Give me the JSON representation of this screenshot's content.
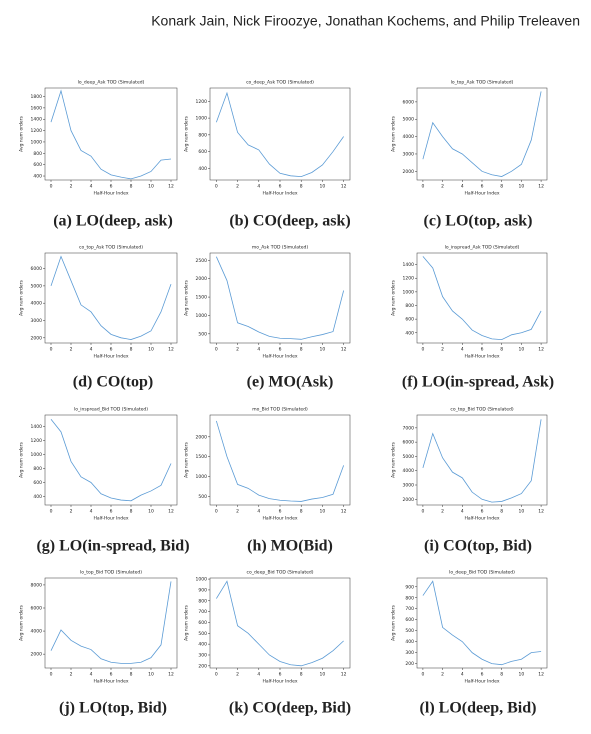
{
  "header": {
    "authors": "Konark Jain, Nick Firoozye, Jonathan Kochems, and Philip Treleaven"
  },
  "chart_data": [
    {
      "type": "line",
      "title": "lo_deep_Ask TOD (Simulated)",
      "caption": "(a) LO(deep, ask)",
      "xlabel": "Half-Hour Index",
      "ylabel": "Avg num orders",
      "x": [
        0,
        1,
        2,
        3,
        4,
        5,
        6,
        7,
        8,
        9,
        10,
        11,
        12
      ],
      "values": [
        1350,
        1900,
        1200,
        850,
        750,
        520,
        420,
        380,
        350,
        400,
        480,
        680,
        700
      ],
      "color": "#5b9bd5",
      "xlim": [
        -0.6,
        12.6
      ],
      "xticks": [
        0,
        2,
        4,
        6,
        8,
        10,
        12
      ],
      "ylim": [
        330,
        1950
      ],
      "yticks": [
        400,
        600,
        800,
        1000,
        1200,
        1400,
        1600,
        1800
      ]
    },
    {
      "type": "line",
      "title": "co_deep_Ask TOD (Simulated)",
      "caption": "(b) CO(deep, ask)",
      "xlabel": "Half-Hour Index",
      "ylabel": "Avg num orders",
      "x": [
        0,
        1,
        2,
        3,
        4,
        5,
        6,
        7,
        8,
        9,
        10,
        11,
        12
      ],
      "values": [
        950,
        1300,
        830,
        680,
        620,
        450,
        340,
        310,
        300,
        350,
        440,
        600,
        780
      ],
      "color": "#5b9bd5",
      "xlim": [
        -0.6,
        12.6
      ],
      "xticks": [
        0,
        2,
        4,
        6,
        8,
        10,
        12
      ],
      "ylim": [
        260,
        1360
      ],
      "yticks": [
        400,
        600,
        800,
        1000,
        1200
      ]
    },
    {
      "type": "line",
      "title": "lo_top_Ask TOD (Simulated)",
      "caption": "(c) LO(top, ask)",
      "xlabel": "Half-Hour Index",
      "ylabel": "Avg num orders",
      "x": [
        0,
        1,
        2,
        3,
        4,
        5,
        6,
        7,
        8,
        9,
        10,
        11,
        12
      ],
      "values": [
        2700,
        4800,
        4000,
        3300,
        3000,
        2500,
        2000,
        1800,
        1700,
        2000,
        2400,
        3800,
        6600
      ],
      "color": "#5b9bd5",
      "xlim": [
        -0.6,
        12.6
      ],
      "xticks": [
        0,
        2,
        4,
        6,
        8,
        10,
        12
      ],
      "ylim": [
        1500,
        6800
      ],
      "yticks": [
        2000,
        3000,
        4000,
        5000,
        6000
      ]
    },
    {
      "type": "line",
      "title": "co_top_Ask TOD (Simulated)",
      "caption": "(d) CO(top)",
      "xlabel": "Half-Hour Index",
      "ylabel": "Avg num orders",
      "x": [
        0,
        1,
        2,
        3,
        4,
        5,
        6,
        7,
        8,
        9,
        10,
        11,
        12
      ],
      "values": [
        5000,
        6700,
        5300,
        3900,
        3500,
        2700,
        2200,
        2000,
        1900,
        2100,
        2400,
        3500,
        5100
      ],
      "color": "#5b9bd5",
      "xlim": [
        -0.6,
        12.6
      ],
      "xticks": [
        0,
        2,
        4,
        6,
        8,
        10,
        12
      ],
      "ylim": [
        1700,
        6900
      ],
      "yticks": [
        2000,
        3000,
        4000,
        5000,
        6000
      ]
    },
    {
      "type": "line",
      "title": "mo_Ask TOD (Simulated)",
      "caption": "(e) MO(Ask)",
      "xlabel": "Half-Hour Index",
      "ylabel": "Avg num orders",
      "x": [
        0,
        1,
        2,
        3,
        4,
        5,
        6,
        7,
        8,
        9,
        10,
        11,
        12
      ],
      "values": [
        2600,
        1950,
        800,
        700,
        550,
        430,
        380,
        370,
        350,
        420,
        480,
        560,
        1680
      ],
      "color": "#5b9bd5",
      "xlim": [
        -0.6,
        12.6
      ],
      "xticks": [
        0,
        2,
        4,
        6,
        8,
        10,
        12
      ],
      "ylim": [
        250,
        2700
      ],
      "yticks": [
        500,
        1000,
        1500,
        2000,
        2500
      ]
    },
    {
      "type": "line",
      "title": "lo_inspread_Ask TOD (Simulated)",
      "caption": "(f) LO(in-spread, Ask)",
      "xlabel": "Half-Hour Index",
      "ylabel": "Avg num orders",
      "x": [
        0,
        1,
        2,
        3,
        4,
        5,
        6,
        7,
        8,
        9,
        10,
        11,
        12
      ],
      "values": [
        1520,
        1350,
        930,
        720,
        600,
        440,
        360,
        310,
        300,
        370,
        400,
        450,
        720
      ],
      "color": "#5b9bd5",
      "xlim": [
        -0.6,
        12.6
      ],
      "xticks": [
        0,
        2,
        4,
        6,
        8,
        10,
        12
      ],
      "ylim": [
        250,
        1570
      ],
      "yticks": [
        400,
        600,
        800,
        1000,
        1200,
        1400
      ]
    },
    {
      "type": "line",
      "title": "lo_inspread_Bid TOD (Simulated)",
      "caption": "(g) LO(in-spread, Bid)",
      "xlabel": "Half-Hour Index",
      "ylabel": "Avg num orders",
      "x": [
        0,
        1,
        2,
        3,
        4,
        5,
        6,
        7,
        8,
        9,
        10,
        11,
        12
      ],
      "values": [
        1500,
        1320,
        900,
        680,
        600,
        440,
        380,
        350,
        340,
        420,
        480,
        560,
        870
      ],
      "color": "#5b9bd5",
      "xlim": [
        -0.6,
        12.6
      ],
      "xticks": [
        0,
        2,
        4,
        6,
        8,
        10,
        12
      ],
      "ylim": [
        280,
        1560
      ],
      "yticks": [
        400,
        600,
        800,
        1000,
        1200,
        1400
      ]
    },
    {
      "type": "line",
      "title": "mo_Bid TOD (Simulated)",
      "caption": "(h) MO(Bid)",
      "xlabel": "Half-Hour Index",
      "ylabel": "Avg num orders",
      "x": [
        0,
        1,
        2,
        3,
        4,
        5,
        6,
        7,
        8,
        9,
        10,
        11,
        12
      ],
      "values": [
        2400,
        1500,
        800,
        700,
        530,
        440,
        400,
        380,
        370,
        430,
        470,
        550,
        1280
      ],
      "color": "#5b9bd5",
      "xlim": [
        -0.6,
        12.6
      ],
      "xticks": [
        0,
        2,
        4,
        6,
        8,
        10,
        12
      ],
      "ylim": [
        280,
        2550
      ],
      "yticks": [
        500,
        1000,
        1500,
        2000
      ]
    },
    {
      "type": "line",
      "title": "co_top_Bid TOD (Simulated)",
      "caption": "(i) CO(top, Bid)",
      "xlabel": "Half-Hour Index",
      "ylabel": "Avg num orders",
      "x": [
        0,
        1,
        2,
        3,
        4,
        5,
        6,
        7,
        8,
        9,
        10,
        11,
        12
      ],
      "values": [
        4200,
        6600,
        4900,
        3900,
        3500,
        2500,
        2000,
        1800,
        1850,
        2100,
        2400,
        3300,
        7600
      ],
      "color": "#5b9bd5",
      "xlim": [
        -0.6,
        12.6
      ],
      "xticks": [
        0,
        2,
        4,
        6,
        8,
        10,
        12
      ],
      "ylim": [
        1600,
        7900
      ],
      "yticks": [
        2000,
        3000,
        4000,
        5000,
        6000,
        7000
      ]
    },
    {
      "type": "line",
      "title": "lo_top_Bid TOD (Simulated)",
      "caption": "(j) LO(top, Bid)",
      "xlabel": "Half-Hour Index",
      "ylabel": "Avg num orders",
      "x": [
        0,
        1,
        2,
        3,
        4,
        5,
        6,
        7,
        8,
        9,
        10,
        11,
        12
      ],
      "values": [
        2300,
        4100,
        3200,
        2700,
        2400,
        1600,
        1300,
        1200,
        1200,
        1300,
        1700,
        2800,
        8300
      ],
      "color": "#5b9bd5",
      "xlim": [
        -0.6,
        12.6
      ],
      "xticks": [
        0,
        2,
        4,
        6,
        8,
        10,
        12
      ],
      "ylim": [
        800,
        8600
      ],
      "yticks": [
        2000,
        4000,
        6000,
        8000
      ]
    },
    {
      "type": "line",
      "title": "co_deep_Bid TOD (Simulated)",
      "caption": "(k) CO(deep, Bid)",
      "xlabel": "Half-Hour Index",
      "ylabel": "Avg num orders",
      "x": [
        0,
        1,
        2,
        3,
        4,
        5,
        6,
        7,
        8,
        9,
        10,
        11,
        12
      ],
      "values": [
        820,
        980,
        570,
        500,
        400,
        300,
        240,
        210,
        200,
        230,
        270,
        340,
        430
      ],
      "color": "#5b9bd5",
      "xlim": [
        -0.6,
        12.6
      ],
      "xticks": [
        0,
        2,
        4,
        6,
        8,
        10,
        12
      ],
      "ylim": [
        180,
        1010
      ],
      "yticks": [
        200,
        300,
        400,
        500,
        600,
        700,
        800,
        900,
        1000
      ]
    },
    {
      "type": "line",
      "title": "lo_deep_Bid TOD (Simulated)",
      "caption": "(l) LO(deep, Bid)",
      "xlabel": "Half-Hour Index",
      "ylabel": "Avg num orders",
      "x": [
        0,
        1,
        2,
        3,
        4,
        5,
        6,
        7,
        8,
        9,
        10,
        11,
        12
      ],
      "values": [
        820,
        950,
        530,
        460,
        400,
        300,
        240,
        200,
        190,
        220,
        240,
        300,
        310
      ],
      "color": "#5b9bd5",
      "xlim": [
        -0.6,
        12.6
      ],
      "xticks": [
        0,
        2,
        4,
        6,
        8,
        10,
        12
      ],
      "ylim": [
        160,
        980
      ],
      "yticks": [
        200,
        300,
        400,
        500,
        600,
        700,
        800,
        900
      ]
    }
  ]
}
